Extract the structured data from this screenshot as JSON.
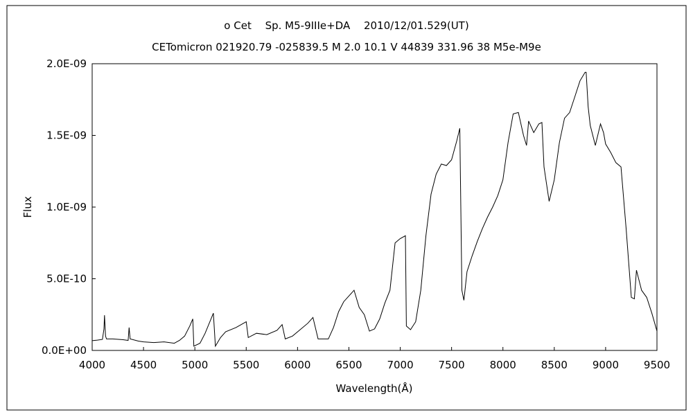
{
  "chart_data": {
    "type": "line",
    "title": "ο Cet　 Sp. M5-9IIIe+DA　 2010/12/01.529(UT)",
    "subtitle": "CETomicron 021920.79 -025839.5 M 2.0 10.1  V 44839 331.96 38 M5e-M9e",
    "xlabel": "Wavelength(Å)",
    "ylabel": "Flux",
    "xlim": [
      4000,
      9500
    ],
    "ylim": [
      0,
      2e-09
    ],
    "xticks": [
      4000,
      4500,
      5000,
      5500,
      6000,
      6500,
      7000,
      7500,
      8000,
      8500,
      9000,
      9500
    ],
    "xtick_labels": [
      "4000",
      "4500",
      "5000",
      "5500",
      "6000",
      "6500",
      "7000",
      "7500",
      "8000",
      "8500",
      "9000",
      "9500"
    ],
    "yticks": [
      0,
      5e-10,
      1e-09,
      1.5e-09,
      2e-09
    ],
    "ytick_labels": [
      "0.0E+00",
      "5.0E-10",
      "1.0E-09",
      "1.5E-09",
      "2.0E-09"
    ],
    "grid": false,
    "line_color": "#000000",
    "series": [
      {
        "x": [
          4000,
          4050,
          4100,
          4115,
          4120,
          4130,
          4140,
          4200,
          4300,
          4350,
          4360,
          4370,
          4450,
          4500,
          4600,
          4700,
          4800,
          4850,
          4900,
          4950,
          4980,
          4990,
          5050,
          5100,
          5180,
          5200,
          5250,
          5300,
          5400,
          5500,
          5520,
          5600,
          5700,
          5800,
          5850,
          5880,
          5950,
          6000,
          6100,
          6150,
          6200,
          6300,
          6350,
          6400,
          6450,
          6500,
          6550,
          6600,
          6650,
          6700,
          6750,
          6800,
          6850,
          6900,
          6950,
          7000,
          7050,
          7060,
          7100,
          7150,
          7200,
          7250,
          7300,
          7350,
          7400,
          7450,
          7500,
          7550,
          7580,
          7600,
          7620,
          7650,
          7700,
          7750,
          7800,
          7850,
          7900,
          7950,
          8000,
          8050,
          8100,
          8150,
          8200,
          8230,
          8250,
          8300,
          8350,
          8380,
          8400,
          8450,
          8500,
          8550,
          8600,
          8650,
          8700,
          8750,
          8800,
          8810,
          8830,
          8850,
          8900,
          8950,
          8980,
          9000,
          9050,
          9100,
          9150,
          9200,
          9250,
          9280,
          9300,
          9350,
          9400,
          9450,
          9500
        ],
        "y": [
          6.8e-11,
          7.2e-11,
          7.7e-11,
          1.5e-10,
          2.46e-10,
          1e-10,
          8e-11,
          8e-11,
          7.5e-11,
          7e-11,
          1.6e-10,
          8e-11,
          6.5e-11,
          6e-11,
          5.5e-11,
          6e-11,
          5e-11,
          7e-11,
          1e-10,
          1.7e-10,
          2.2e-10,
          3e-11,
          5e-11,
          1.2e-10,
          2.6e-10,
          3e-11,
          9e-11,
          1.3e-10,
          1.6e-10,
          2e-10,
          9e-11,
          1.2e-10,
          1.1e-10,
          1.4e-10,
          1.8e-10,
          8e-11,
          1e-10,
          1.3e-10,
          1.9e-10,
          2.3e-10,
          8e-11,
          8e-11,
          1.6e-10,
          2.7e-10,
          3.4e-10,
          3.8e-10,
          4.2e-10,
          3e-10,
          2.5e-10,
          1.35e-10,
          1.5e-10,
          2.2e-10,
          3.3e-10,
          4.2e-10,
          7.5e-10,
          7.8e-10,
          8e-10,
          1.7e-10,
          1.45e-10,
          2e-10,
          4.2e-10,
          8e-10,
          1.09e-09,
          1.23e-09,
          1.3e-09,
          1.29e-09,
          1.33e-09,
          1.46e-09,
          1.55e-09,
          4.2e-10,
          3.5e-10,
          5.5e-10,
          6.6e-10,
          7.6e-10,
          8.5e-10,
          9.3e-10,
          1e-09,
          1.08e-09,
          1.19e-09,
          1.45e-09,
          1.65e-09,
          1.66e-09,
          1.5e-09,
          1.43e-09,
          1.6e-09,
          1.52e-09,
          1.58e-09,
          1.59e-09,
          1.28e-09,
          1.04e-09,
          1.19e-09,
          1.45e-09,
          1.62e-09,
          1.66e-09,
          1.77e-09,
          1.88e-09,
          1.94e-09,
          1.94e-09,
          1.7e-09,
          1.57e-09,
          1.43e-09,
          1.58e-09,
          1.52e-09,
          1.44e-09,
          1.38e-09,
          1.31e-09,
          1.28e-09,
          8.5e-10,
          3.7e-10,
          3.6e-10,
          5.6e-10,
          4.2e-10,
          3.7e-10,
          2.6e-10,
          1.35e-10
        ]
      }
    ]
  }
}
